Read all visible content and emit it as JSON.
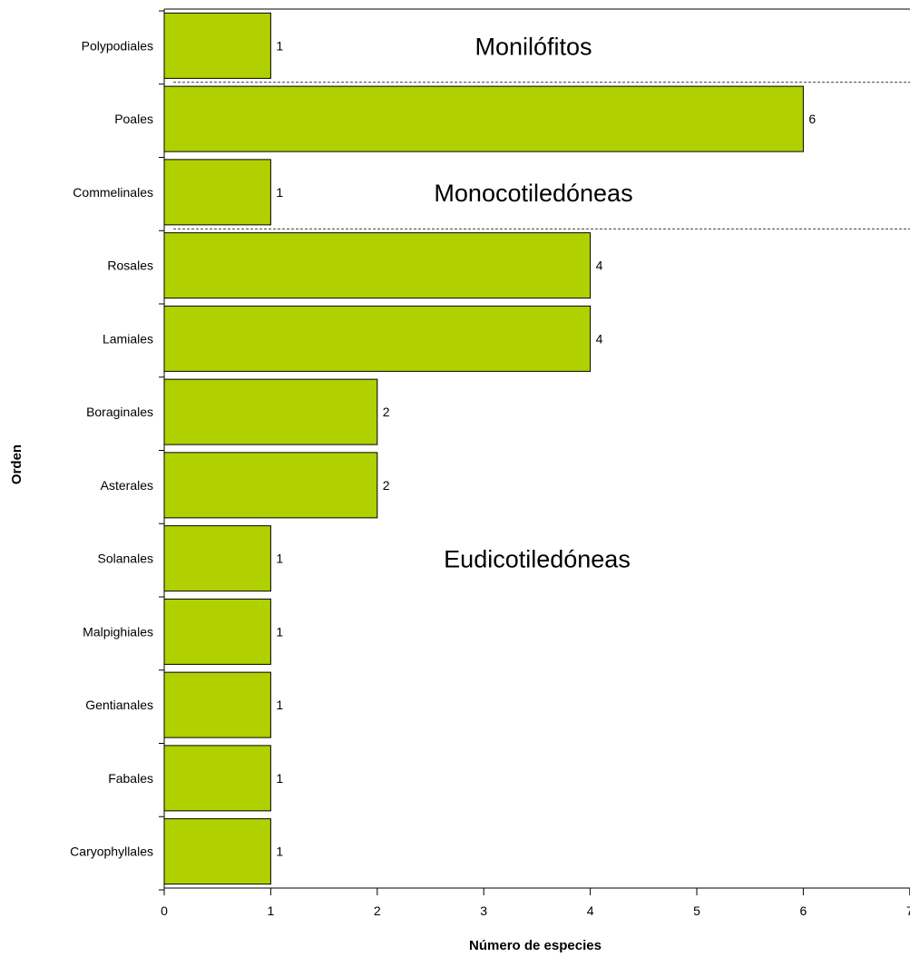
{
  "chart_data": {
    "type": "bar",
    "orientation": "horizontal",
    "categories": [
      "Polypodiales",
      "Poales",
      "Commelinales",
      "Rosales",
      "Lamiales",
      "Boraginales",
      "Asterales",
      "Solanales",
      "Malpighiales",
      "Gentianales",
      "Fabales",
      "Caryophyllales"
    ],
    "values": [
      1,
      6,
      1,
      4,
      4,
      2,
      2,
      1,
      1,
      1,
      1,
      1
    ],
    "data_labels": [
      "1",
      "6",
      "1",
      "4",
      "4",
      "2",
      "2",
      "1",
      "1",
      "1",
      "1",
      "1"
    ],
    "xlabel": "Número de especies",
    "ylabel": "Orden",
    "xlim": [
      0,
      7
    ],
    "xticks": [
      "0",
      "1",
      "2",
      "3",
      "4",
      "5",
      "6",
      "7"
    ],
    "grid": false,
    "bar_color": "#b0d000",
    "groups": [
      {
        "label": "Monilófitos",
        "first": 0,
        "last": 0
      },
      {
        "label": "Monocotiledóneas",
        "first": 1,
        "last": 2
      },
      {
        "label": "Eudicotiledóneas",
        "first": 3,
        "last": 11
      }
    ]
  }
}
